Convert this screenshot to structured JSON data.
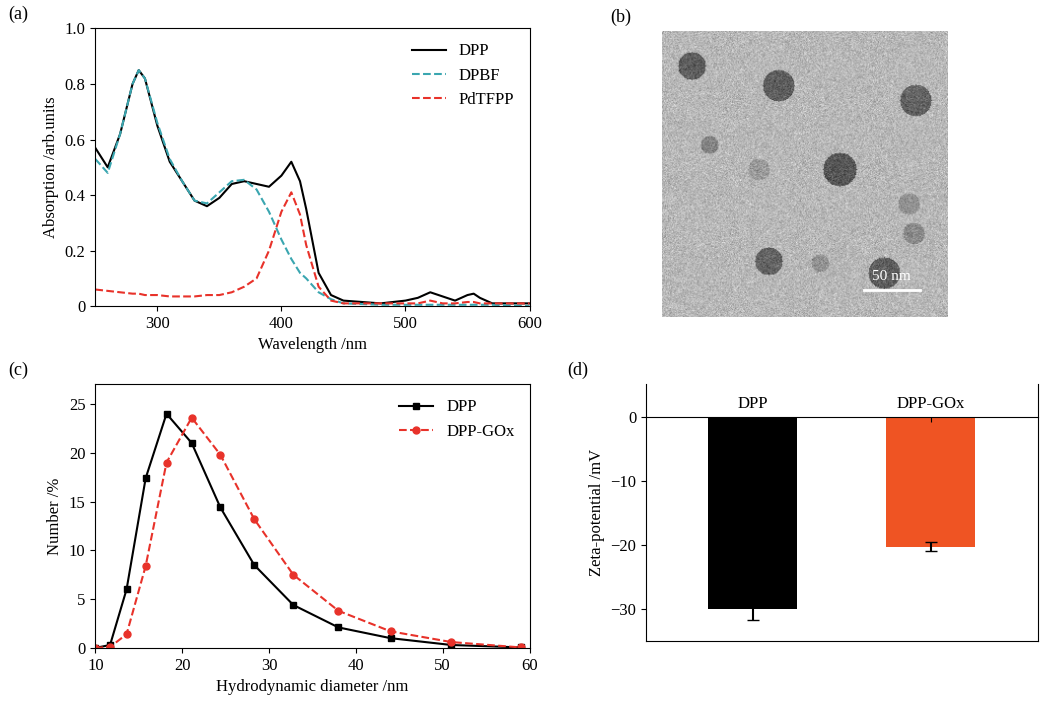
{
  "chart_data": [
    {
      "type": "line",
      "title": "(a)",
      "x_label": "Wavelength /nm",
      "y_label": "Absorption /arb.units",
      "x": [
        250,
        260,
        270,
        280,
        285,
        290,
        300,
        310,
        320,
        330,
        340,
        350,
        360,
        370,
        380,
        390,
        400,
        408,
        415,
        420,
        430,
        440,
        450,
        480,
        500,
        510,
        520,
        530,
        540,
        550,
        555,
        560,
        570,
        600
      ],
      "series": [
        {
          "name": "DPP",
          "color": "#000000",
          "line_style": "solid",
          "values": [
            0.57,
            0.5,
            0.62,
            0.8,
            0.85,
            0.82,
            0.65,
            0.52,
            0.45,
            0.38,
            0.36,
            0.39,
            0.44,
            0.45,
            0.44,
            0.43,
            0.47,
            0.52,
            0.45,
            0.35,
            0.12,
            0.04,
            0.02,
            0.01,
            0.02,
            0.03,
            0.05,
            0.035,
            0.02,
            0.04,
            0.045,
            0.03,
            0.01,
            0.01
          ]
        },
        {
          "name": "DPBF",
          "color": "#3aa6b0",
          "line_style": "dashed",
          "values": [
            0.53,
            0.48,
            0.62,
            0.8,
            0.85,
            0.82,
            0.66,
            0.53,
            0.45,
            0.38,
            0.37,
            0.41,
            0.45,
            0.455,
            0.42,
            0.34,
            0.24,
            0.17,
            0.12,
            0.1,
            0.05,
            0.025,
            0.01,
            0.005,
            0.005,
            0.005,
            0.005,
            0.005,
            0.005,
            0.005,
            0.005,
            0.005,
            0.005,
            0
          ]
        },
        {
          "name": "PdTFPP",
          "color": "#e8322a",
          "line_style": "dashed",
          "values": [
            0.06,
            0.055,
            0.05,
            0.045,
            0.045,
            0.04,
            0.04,
            0.035,
            0.035,
            0.035,
            0.04,
            0.04,
            0.05,
            0.07,
            0.1,
            0.2,
            0.34,
            0.41,
            0.33,
            0.22,
            0.07,
            0.02,
            0.01,
            0.01,
            0.01,
            0.01,
            0.02,
            0.01,
            0.01,
            0.015,
            0.015,
            0.01,
            0.01,
            0.01
          ]
        }
      ],
      "xlim": [
        250,
        600
      ],
      "xticks": [
        300,
        400,
        500,
        600
      ],
      "ylim": [
        0,
        1.0
      ],
      "yticks": [
        0,
        0.2,
        0.4,
        0.6,
        0.8,
        1.0
      ],
      "legend": "upper right"
    },
    {
      "type": "image",
      "title": "(b)",
      "scale_bar": "50 nm"
    },
    {
      "type": "line",
      "title": "(c)",
      "x_label": "Hydrodynamic diameter /nm",
      "y_label": "Number /%",
      "x": [
        10,
        11.7,
        13.6,
        15.8,
        18.2,
        21.1,
        24.4,
        28.3,
        32.8,
        38,
        44,
        51,
        59
      ],
      "series": [
        {
          "name": "DPP",
          "color": "#000000",
          "line_style": "solid",
          "marker": "square",
          "values": [
            0,
            0.3,
            6,
            17.4,
            24,
            21,
            14.4,
            8.5,
            4.4,
            2.1,
            1,
            0.3,
            0.05
          ]
        },
        {
          "name": "DPP-GOx",
          "color": "#e8322a",
          "line_style": "dashed",
          "marker": "circle",
          "values": [
            0,
            0.1,
            1.4,
            8.4,
            19,
            23.6,
            19.8,
            13.2,
            7.5,
            3.8,
            1.7,
            0.6,
            0.05
          ]
        }
      ],
      "xlim": [
        10,
        60
      ],
      "xticks": [
        10,
        20,
        30,
        40,
        50,
        60
      ],
      "ylim": [
        0,
        27
      ],
      "yticks": [
        0,
        5,
        10,
        15,
        20,
        25
      ],
      "legend": "upper right"
    },
    {
      "type": "bar",
      "title": "(d)",
      "y_label": "Zeta-potential /mV",
      "categories": [
        "DPP",
        "DPP-GOx"
      ],
      "values": [
        -30,
        -20.3
      ],
      "errors": [
        1.7,
        0.7
      ],
      "colors": [
        "#000000",
        "#ef5423"
      ],
      "ylim": [
        -35,
        5
      ],
      "yticks": [
        {
          "value": -30,
          "label": "−30"
        },
        {
          "value": -20,
          "label": "−20"
        },
        {
          "value": -10,
          "label": "−10"
        },
        0
      ]
    }
  ]
}
